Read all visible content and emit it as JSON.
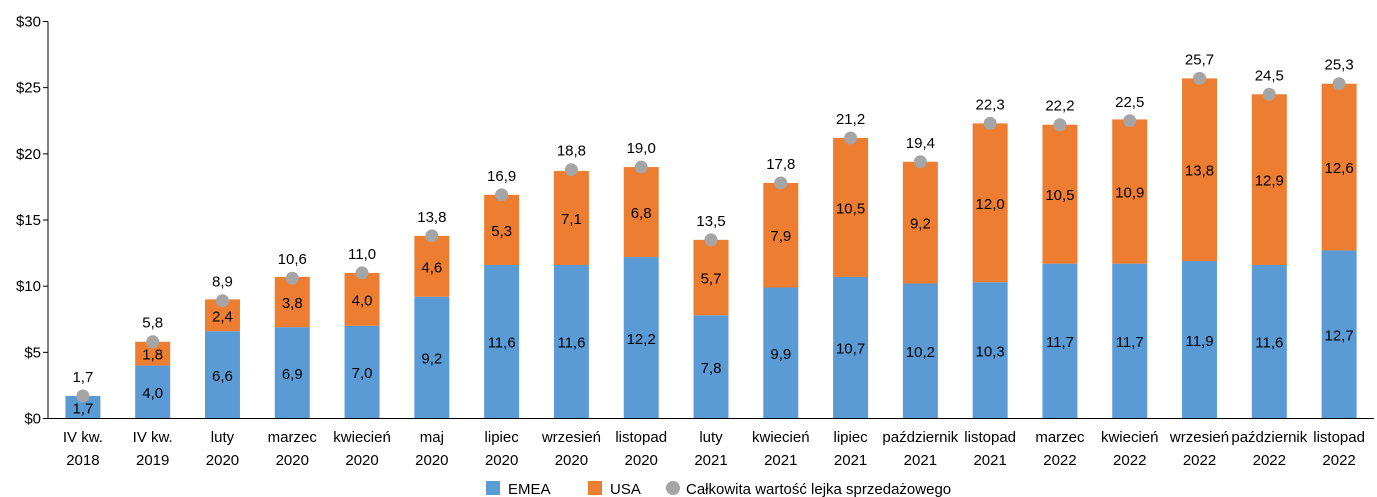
{
  "colors": {
    "emea": "#5b9bd5",
    "usa": "#ed7d31",
    "total": "#a5a5a5",
    "axis": "#000000"
  },
  "chart_data": {
    "type": "bar",
    "stacked": true,
    "categories": [
      [
        "IV kw.",
        "2018"
      ],
      [
        "IV kw.",
        "2019"
      ],
      [
        "luty",
        "2020"
      ],
      [
        "marzec",
        "2020"
      ],
      [
        "kwiecień",
        "2020"
      ],
      [
        "maj",
        "2020"
      ],
      [
        "lipiec",
        "2020"
      ],
      [
        "wrzesień",
        "2020"
      ],
      [
        "listopad",
        "2020"
      ],
      [
        "luty",
        "2021"
      ],
      [
        "kwiecień",
        "2021"
      ],
      [
        "lipiec",
        "2021"
      ],
      [
        "październik",
        "2021"
      ],
      [
        "listopad",
        "2021"
      ],
      [
        "marzec",
        "2022"
      ],
      [
        "kwiecień",
        "2022"
      ],
      [
        "wrzesień",
        "2022"
      ],
      [
        "październik",
        "2022"
      ],
      [
        "listopad",
        "2022"
      ]
    ],
    "series": [
      {
        "name": "EMEA",
        "values": [
          1.7,
          4.0,
          6.6,
          6.9,
          7.0,
          9.2,
          11.6,
          11.6,
          12.2,
          7.8,
          9.9,
          10.7,
          10.2,
          10.3,
          11.7,
          11.7,
          11.9,
          11.6,
          12.7
        ],
        "labels": [
          "1,7",
          "4,0",
          "6,6",
          "6,9",
          "7,0",
          "9,2",
          "11,6",
          "11,6",
          "12,2",
          "7,8",
          "9,9",
          "10,7",
          "10,2",
          "10,3",
          "11,7",
          "11,7",
          "11,9",
          "11,6",
          "12,7"
        ]
      },
      {
        "name": "USA",
        "values": [
          0,
          1.8,
          2.4,
          3.8,
          4.0,
          4.6,
          5.3,
          7.1,
          6.8,
          5.7,
          7.9,
          10.5,
          9.2,
          12.0,
          10.5,
          10.9,
          13.8,
          12.9,
          12.6
        ],
        "labels": [
          "",
          "1,8",
          "2,4",
          "3,8",
          "4,0",
          "4,6",
          "5,3",
          "7,1",
          "6,8",
          "5,7",
          "7,9",
          "10,5",
          "9,2",
          "12,0",
          "10,5",
          "10,9",
          "13,8",
          "12,9",
          "12,6"
        ]
      },
      {
        "name": "Całkowita wartość lejka sprzedażowego",
        "type": "scatter",
        "values": [
          1.7,
          5.8,
          8.9,
          10.6,
          11.0,
          13.8,
          16.9,
          18.8,
          19.0,
          13.5,
          17.8,
          21.2,
          19.4,
          22.3,
          22.2,
          22.5,
          25.7,
          24.5,
          25.3
        ],
        "labels": [
          "1,7",
          "5,8",
          "8,9",
          "10,6",
          "11,0",
          "13,8",
          "16,9",
          "18,8",
          "19,0",
          "13,5",
          "17,8",
          "21,2",
          "19,4",
          "22,3",
          "22,2",
          "22,5",
          "25,7",
          "24,5",
          "25,3"
        ]
      }
    ],
    "yticks": [
      {
        "v": 0,
        "label": "$0"
      },
      {
        "v": 5,
        "label": "$5"
      },
      {
        "v": 10,
        "label": "$10"
      },
      {
        "v": 15,
        "label": "$15"
      },
      {
        "v": 20,
        "label": "$20"
      },
      {
        "v": 25,
        "label": "$25"
      },
      {
        "v": 30,
        "label": "$30"
      }
    ],
    "ylim": [
      0,
      30
    ],
    "grid": false,
    "legend": "bottom"
  }
}
